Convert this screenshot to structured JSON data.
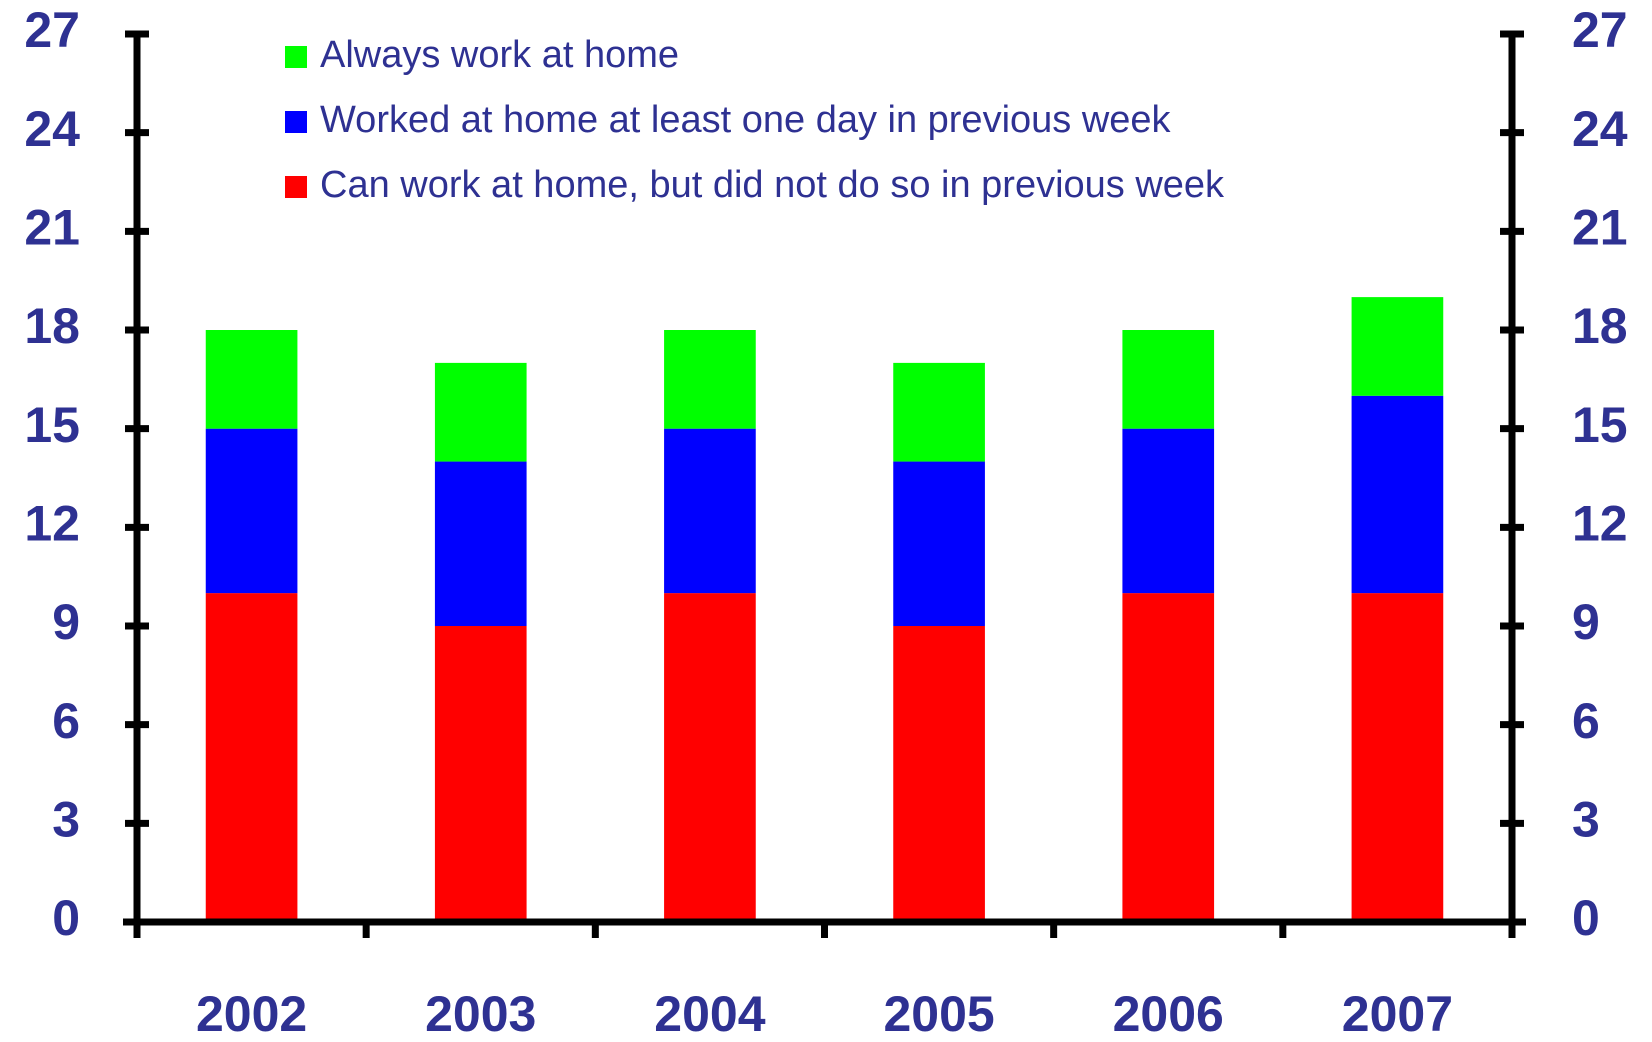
{
  "chart_data": {
    "type": "stacked_bar",
    "categories": [
      "2002",
      "2003",
      "2004",
      "2005",
      "2006",
      "2007"
    ],
    "series": [
      {
        "name": "Can work at home, but did not do so in previous week",
        "color": "#ff0000",
        "values": [
          10,
          9,
          10,
          9,
          10,
          10
        ]
      },
      {
        "name": "Worked at home at least one day in previous week",
        "color": "#0000ff",
        "values": [
          5,
          5,
          5,
          5,
          5,
          6
        ]
      },
      {
        "name": "Always work at home",
        "color": "#00ff00",
        "values": [
          3,
          3,
          3,
          3,
          3,
          3
        ]
      }
    ],
    "ylim": [
      0,
      27
    ],
    "yticks": [
      0,
      3,
      6,
      9,
      12,
      15,
      18,
      21,
      24,
      27
    ],
    "y2lim": [
      0,
      27
    ],
    "y2ticks": [
      0,
      3,
      6,
      9,
      12,
      15,
      18,
      21,
      24,
      27
    ],
    "legend": "top",
    "grid": false
  }
}
